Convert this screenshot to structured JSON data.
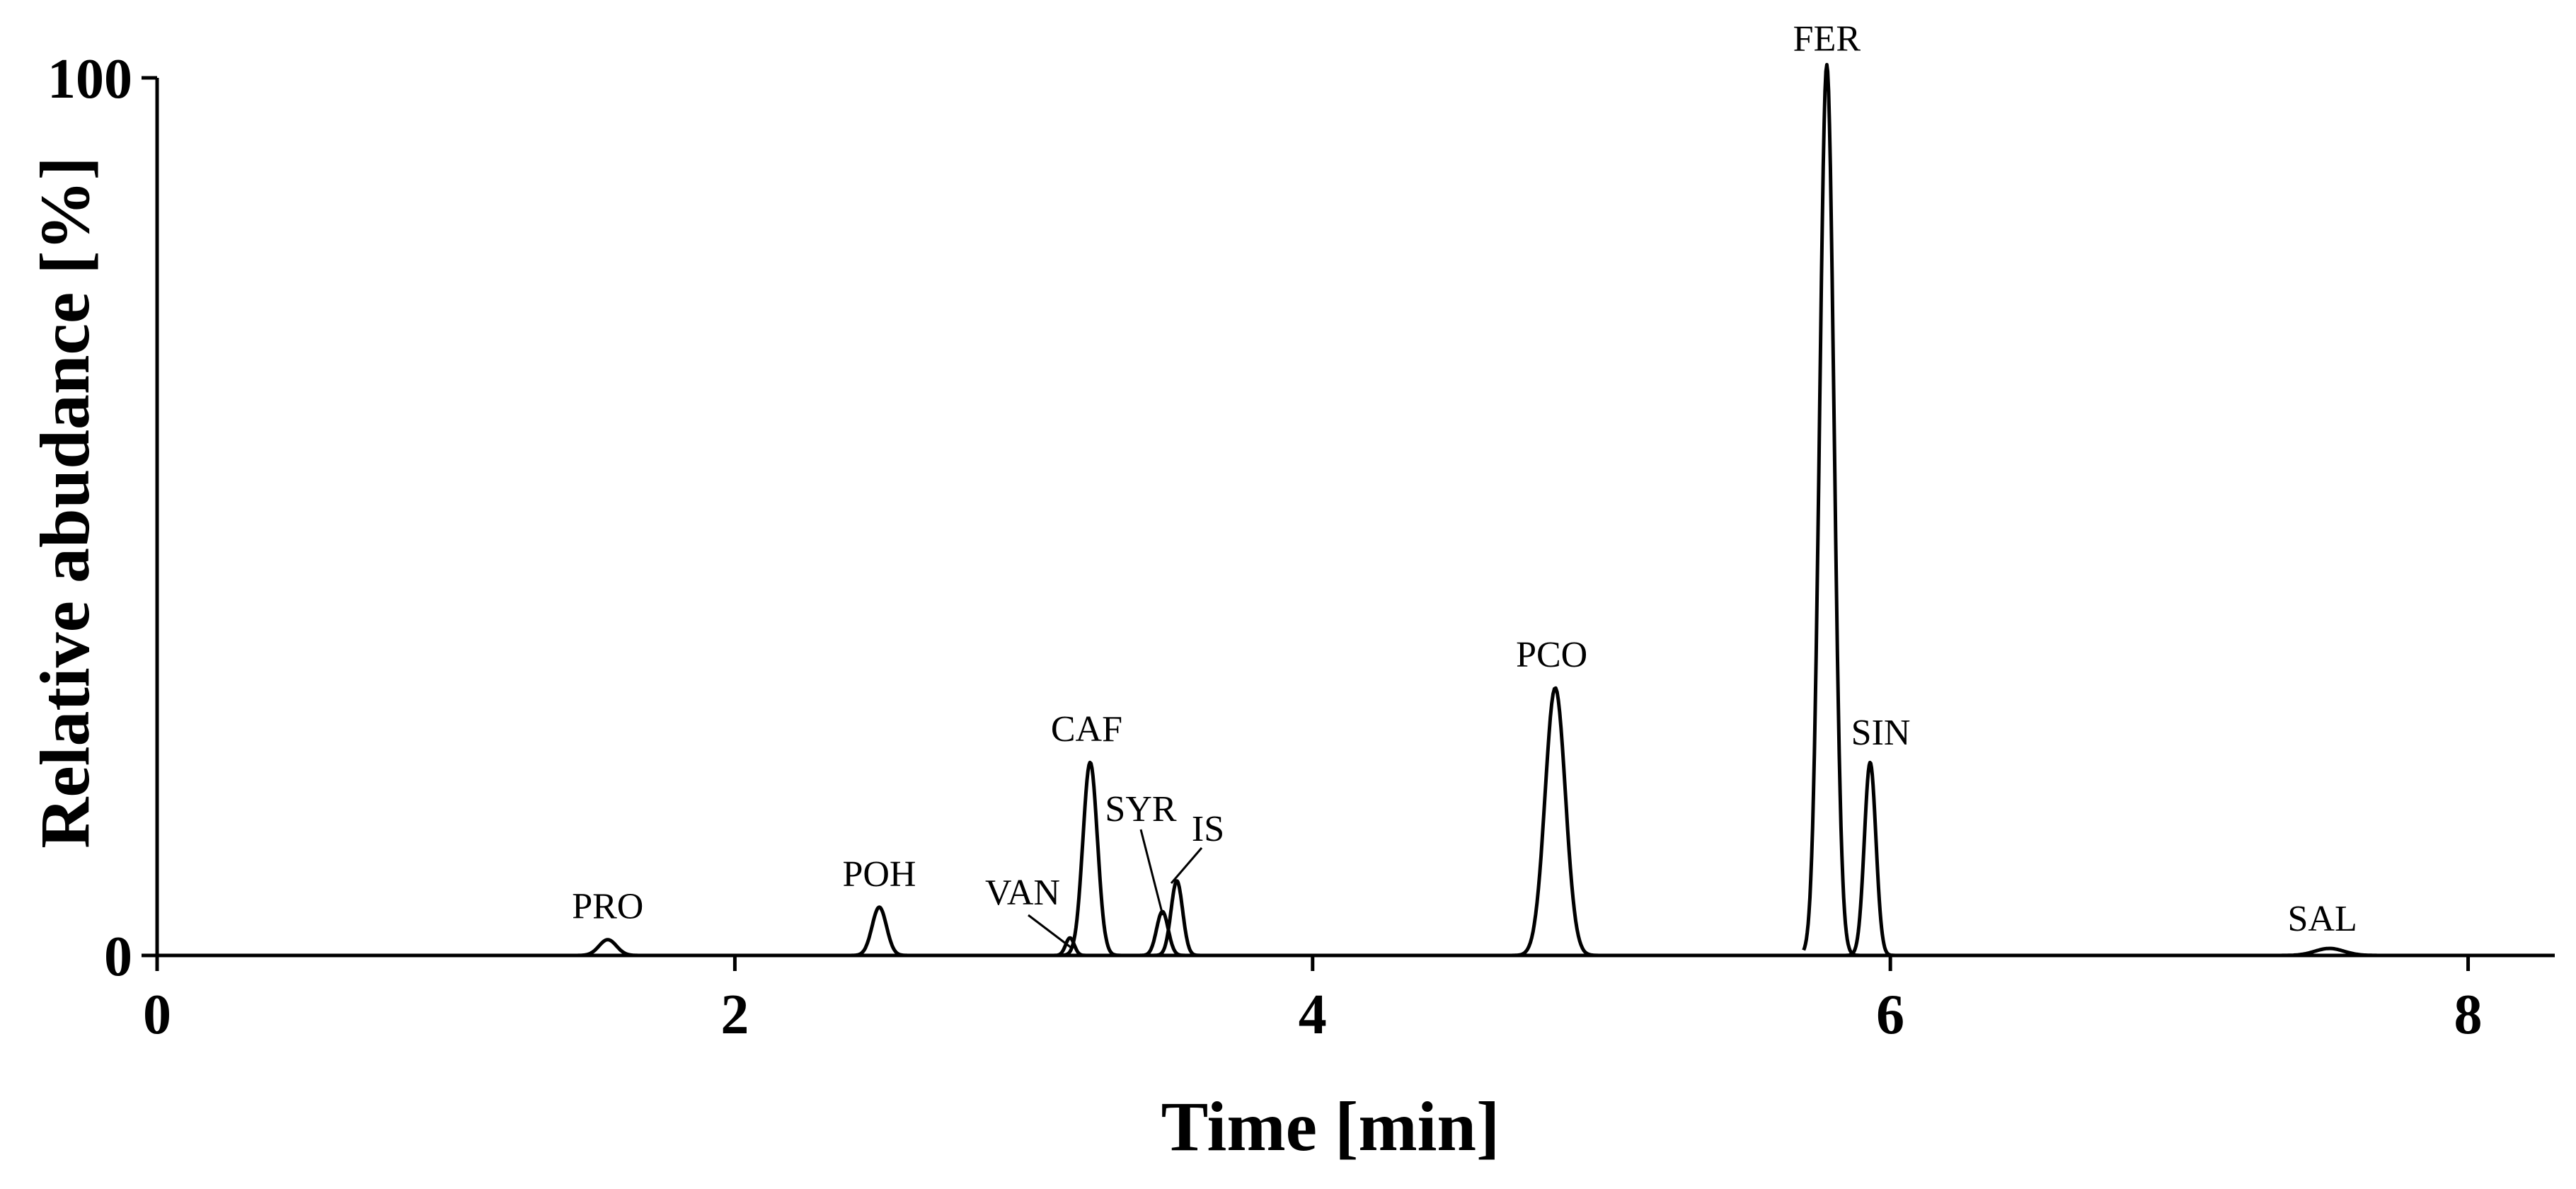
{
  "chart_data": {
    "type": "line",
    "title": "",
    "xlabel": "Time [min]",
    "ylabel": "Relative abudance [%]",
    "xlim": [
      0,
      8.3
    ],
    "ylim": [
      0,
      100
    ],
    "x_ticks": [
      0,
      2,
      4,
      6,
      8
    ],
    "y_ticks": [
      0,
      100
    ],
    "grid": false,
    "legend": "none",
    "series": [
      {
        "name": "PRO",
        "label": "PRO",
        "rt": 1.56,
        "height": 1.8,
        "width": 0.03,
        "range": [
          1.0,
          2.3
        ]
      },
      {
        "name": "POH",
        "label": "POH",
        "rt": 2.5,
        "height": 5.5,
        "width": 0.025,
        "range": [
          2.3,
          2.8
        ]
      },
      {
        "name": "VAN",
        "label": "VAN",
        "rt": 3.16,
        "height": 2.0,
        "width": 0.015,
        "range": [
          2.8,
          3.3
        ]
      },
      {
        "name": "CAF",
        "label": "CAF",
        "rt": 3.23,
        "height": 22.0,
        "width": 0.025,
        "range": [
          2.8,
          3.7
        ]
      },
      {
        "name": "SYR",
        "label": "SYR",
        "rt": 3.48,
        "height": 5.0,
        "width": 0.02,
        "range": [
          3.3,
          3.7
        ]
      },
      {
        "name": "IS",
        "label": "IS",
        "rt": 3.53,
        "height": 8.5,
        "width": 0.02,
        "range": [
          3.3,
          3.7
        ]
      },
      {
        "name": "PCO",
        "label": "PCO",
        "rt": 4.84,
        "height": 30.5,
        "width": 0.035,
        "range": [
          4.5,
          5.7
        ]
      },
      {
        "name": "FER",
        "label": "FER",
        "rt": 5.78,
        "height": 101.5,
        "width": 0.025,
        "range": [
          5.7,
          6.5
        ]
      },
      {
        "name": "SIN",
        "label": "SIN",
        "rt": 5.93,
        "height": 22.0,
        "width": 0.02,
        "range": [
          5.8,
          6.5
        ]
      },
      {
        "name": "SAL",
        "label": "SAL",
        "rt": 7.52,
        "height": 0.8,
        "width": 0.05,
        "range": [
          6.9,
          8.3
        ]
      }
    ]
  }
}
